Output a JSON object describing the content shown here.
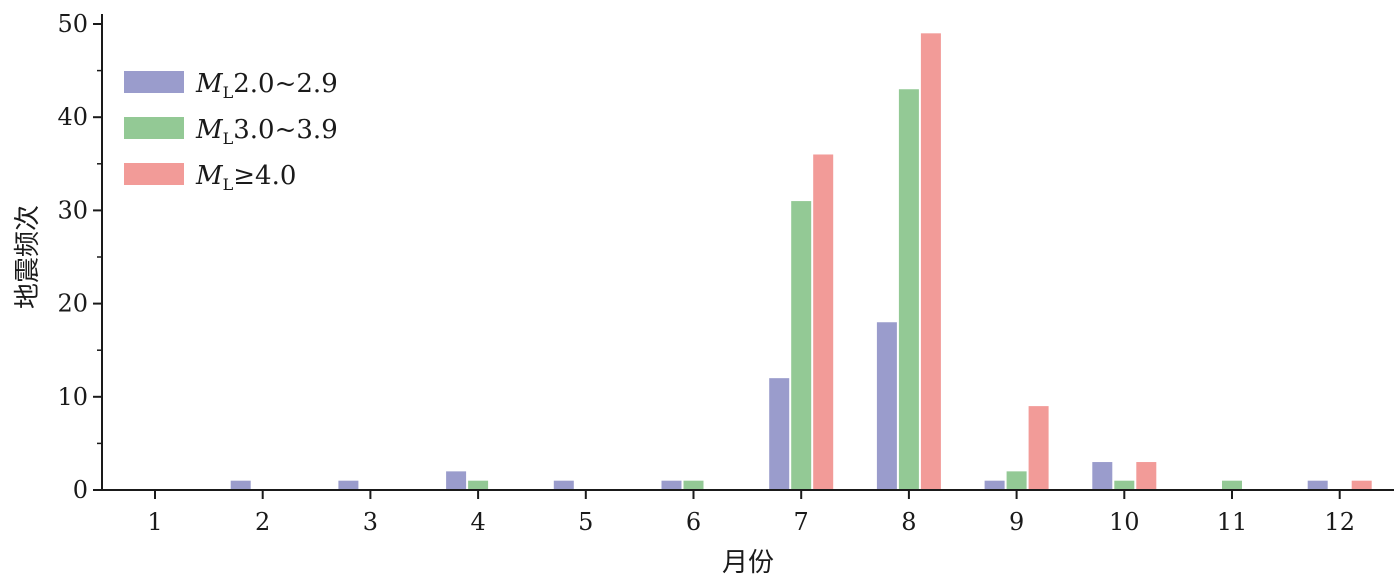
{
  "chart_data": {
    "type": "bar",
    "title": "",
    "xlabel": "月份",
    "ylabel": "地震频次",
    "categories": [
      "1",
      "2",
      "3",
      "4",
      "5",
      "6",
      "7",
      "8",
      "9",
      "10",
      "11",
      "12"
    ],
    "ylim": [
      0,
      50
    ],
    "yticks": [
      "0",
      "10",
      "20",
      "30",
      "40",
      "50"
    ],
    "grid": false,
    "legend_position": "top-left",
    "series": [
      {
        "name": "ML2.0~2.9",
        "legend_main": "M",
        "legend_sub": "L",
        "legend_rest": "2.0~2.9",
        "color": "#9a9ccc",
        "values": [
          0,
          1,
          1,
          2,
          1,
          1,
          12,
          18,
          1,
          3,
          0,
          1
        ]
      },
      {
        "name": "ML3.0~3.9",
        "legend_main": "M",
        "legend_sub": "L",
        "legend_rest": "3.0~3.9",
        "color": "#93c995",
        "values": [
          0,
          0,
          0,
          1,
          0,
          1,
          31,
          43,
          2,
          1,
          1,
          0
        ]
      },
      {
        "name": "ML≥4.0",
        "legend_main": "M",
        "legend_sub": "L",
        "legend_rest": "≥4.0",
        "color": "#f29b98",
        "values": [
          0,
          0,
          0,
          0,
          0,
          0,
          36,
          49,
          9,
          3,
          0,
          1
        ]
      }
    ]
  }
}
